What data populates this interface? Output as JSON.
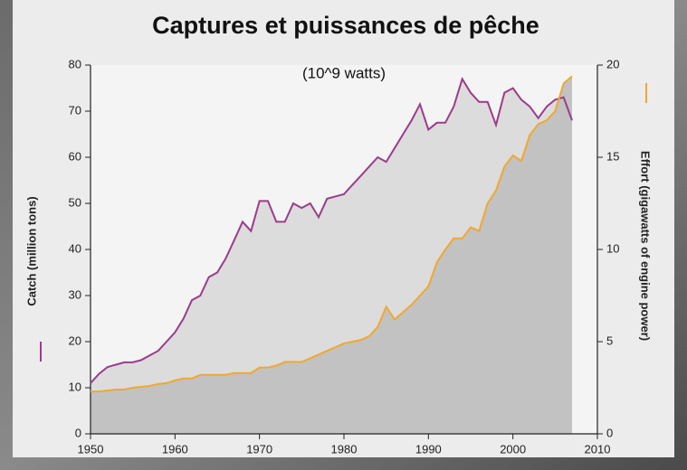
{
  "chart_data": {
    "type": "line",
    "title": "Captures et puissances de pêche",
    "annotation": "(10^9 watts)",
    "ylabel": "Catch (million tons)",
    "y2label": "Effort (gigawatts of engine power)",
    "x": [
      1950,
      1951,
      1952,
      1953,
      1954,
      1955,
      1956,
      1957,
      1958,
      1959,
      1960,
      1961,
      1962,
      1963,
      1964,
      1965,
      1966,
      1967,
      1968,
      1969,
      1970,
      1971,
      1972,
      1973,
      1974,
      1975,
      1976,
      1977,
      1978,
      1979,
      1980,
      1981,
      1982,
      1983,
      1984,
      1985,
      1986,
      1987,
      1988,
      1989,
      1990,
      1991,
      1992,
      1993,
      1994,
      1995,
      1996,
      1997,
      1998,
      1999,
      2000,
      2001,
      2002,
      2003,
      2004,
      2005,
      2006,
      2007
    ],
    "series": [
      {
        "name": "Catch",
        "color": "#9b3c8c",
        "values": [
          11,
          13,
          14.5,
          15,
          15.5,
          15.5,
          16,
          17,
          18,
          20,
          22,
          25,
          29,
          30,
          34,
          35,
          38,
          42,
          46,
          44,
          50.5,
          50.5,
          46,
          46,
          50,
          49,
          50,
          47,
          51,
          51.5,
          52,
          54,
          56,
          58,
          60,
          59,
          62,
          65,
          68,
          71.5,
          66,
          67.5,
          67.5,
          71,
          77,
          74,
          72,
          72,
          67,
          74,
          75,
          72.5,
          71,
          68.5,
          71,
          72.5,
          73,
          68
        ]
      },
      {
        "name": "Effort",
        "color": "#f0a830",
        "axis": "y2",
        "values": [
          2.3,
          2.3,
          2.35,
          2.4,
          2.4,
          2.5,
          2.55,
          2.6,
          2.7,
          2.75,
          2.9,
          3.0,
          3.0,
          3.2,
          3.2,
          3.2,
          3.2,
          3.3,
          3.3,
          3.3,
          3.6,
          3.6,
          3.7,
          3.9,
          3.9,
          3.9,
          4.1,
          4.3,
          4.5,
          4.7,
          4.9,
          5.0,
          5.1,
          5.3,
          5.8,
          6.9,
          6.2,
          6.6,
          7.0,
          7.5,
          8.0,
          9.3,
          10.0,
          10.6,
          10.6,
          11.2,
          11.0,
          12.5,
          13.2,
          14.5,
          15.1,
          14.8,
          16.2,
          16.8,
          17.0,
          17.5,
          19.0,
          19.4
        ]
      }
    ],
    "xlim": [
      1950,
      2010
    ],
    "xticks": [
      1950,
      1960,
      1970,
      1980,
      1990,
      2000,
      2010
    ],
    "ylim": [
      0,
      80
    ],
    "yticks": [
      0,
      10,
      20,
      30,
      40,
      50,
      60,
      70,
      80
    ],
    "y2lim": [
      0,
      20
    ],
    "y2ticks": [
      0,
      5,
      10,
      15,
      20
    ]
  }
}
